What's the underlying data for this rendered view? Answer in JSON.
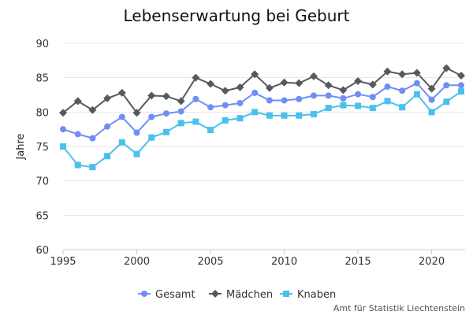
{
  "chart_data": {
    "type": "line",
    "title": "Lebenserwartung bei Geburt",
    "xlabel": "",
    "ylabel": "Jahre",
    "xlim": [
      1995,
      2022
    ],
    "ylim": [
      60,
      90
    ],
    "x_ticks": [
      "1995",
      "2000",
      "2005",
      "2010",
      "2015",
      "2020"
    ],
    "y_ticks": [
      "60",
      "65",
      "70",
      "75",
      "80",
      "85",
      "90"
    ],
    "grid": "horizontal",
    "legend_position": "bottom-center",
    "x": [
      1995,
      1996,
      1997,
      1998,
      1999,
      2000,
      2001,
      2002,
      2003,
      2004,
      2005,
      2006,
      2007,
      2008,
      2009,
      2010,
      2011,
      2012,
      2013,
      2014,
      2015,
      2016,
      2017,
      2018,
      2019,
      2020,
      2021,
      2022
    ],
    "series": [
      {
        "name": "Gesamt",
        "color": "#6f8ff5",
        "marker": "circle",
        "values": [
          77.5,
          76.8,
          76.2,
          77.9,
          79.3,
          77.0,
          79.3,
          79.8,
          80.1,
          81.9,
          80.7,
          81.0,
          81.3,
          82.8,
          81.7,
          81.7,
          81.9,
          82.4,
          82.4,
          82.0,
          82.6,
          82.2,
          83.7,
          83.1,
          84.2,
          81.8,
          83.9,
          83.9
        ]
      },
      {
        "name": "Mädchen",
        "color": "#555a5f",
        "marker": "diamond",
        "values": [
          79.9,
          81.6,
          80.3,
          82.0,
          82.8,
          79.9,
          82.4,
          82.3,
          81.6,
          85.0,
          84.1,
          83.1,
          83.6,
          85.5,
          83.5,
          84.3,
          84.2,
          85.2,
          83.9,
          83.2,
          84.5,
          84.0,
          85.9,
          85.5,
          85.7,
          83.4,
          86.4,
          85.3
        ]
      },
      {
        "name": "Knaben",
        "color": "#4bbfed",
        "marker": "square",
        "values": [
          75.0,
          72.3,
          72.0,
          73.6,
          75.6,
          73.9,
          76.3,
          77.1,
          78.4,
          78.6,
          77.4,
          78.8,
          79.1,
          80.0,
          79.5,
          79.5,
          79.5,
          79.7,
          80.6,
          81.0,
          80.9,
          80.6,
          81.6,
          80.7,
          82.6,
          80.0,
          81.5,
          83.0
        ]
      }
    ]
  },
  "source_note": "Amt für Statistik Liechtenstein"
}
